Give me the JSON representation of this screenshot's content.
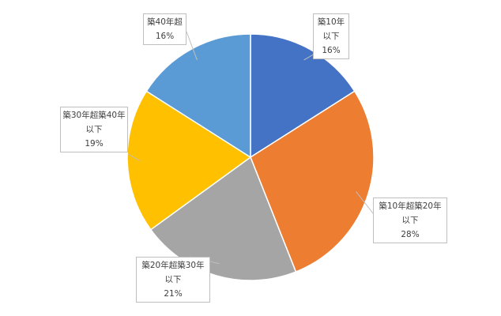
{
  "chart_data": {
    "type": "pie",
    "categories": [
      "築10年以下",
      "築10年超築20年以下",
      "築20年超築30年以下",
      "築30年超築40年以下",
      "築40年超"
    ],
    "values": [
      16,
      28,
      21,
      19,
      16
    ],
    "value_labels": [
      "16%",
      "28%",
      "21%",
      "19%",
      "16%"
    ],
    "colors": [
      "#4472c4",
      "#ed7d31",
      "#a5a5a5",
      "#ffc000",
      "#5b9bd5"
    ]
  }
}
